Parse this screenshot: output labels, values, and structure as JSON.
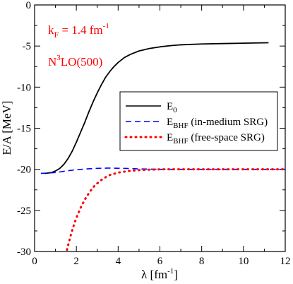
{
  "chart_data": {
    "type": "line",
    "xlabel": {
      "main": "λ [fm",
      "sup": "-1",
      "tail": "]"
    },
    "ylabel": "E/A [MeV]",
    "xlim": [
      0,
      12
    ],
    "ylim": [
      -30,
      0
    ],
    "x_ticks": [
      0,
      2,
      4,
      6,
      8,
      10,
      12
    ],
    "y_ticks": [
      0,
      -5,
      -10,
      -15,
      -20,
      -25,
      -30
    ],
    "grid": false,
    "legend_position": "middle-right",
    "annotations": {
      "kf": {
        "k": "k",
        "sub": "F",
        "rest": " = 1.4 fm",
        "sup": "-1"
      },
      "potential": {
        "pre": "N",
        "sup": "3",
        "post": "LO(500)"
      }
    },
    "series": [
      {
        "name": {
          "main": "E",
          "sub": "0",
          "suffix": ""
        },
        "color": "#000000",
        "style": "solid",
        "x": [
          0.5,
          0.8,
          1.0,
          1.2,
          1.4,
          1.6,
          1.8,
          2.0,
          2.2,
          2.4,
          2.6,
          2.8,
          3.0,
          3.2,
          3.4,
          3.6,
          3.8,
          4.0,
          4.3,
          4.6,
          5.0,
          5.5,
          6.0,
          6.5,
          7.0,
          8.0,
          9.0,
          10.0,
          11.2
        ],
        "y": [
          -20.5,
          -20.4,
          -20.2,
          -19.9,
          -19.4,
          -18.7,
          -17.8,
          -16.7,
          -15.5,
          -14.3,
          -13.0,
          -11.8,
          -10.7,
          -9.7,
          -8.8,
          -8.1,
          -7.5,
          -7.0,
          -6.4,
          -6.0,
          -5.6,
          -5.3,
          -5.1,
          -4.95,
          -4.85,
          -4.75,
          -4.7,
          -4.65,
          -4.6
        ]
      },
      {
        "name": {
          "main": "E",
          "sub": "BHF",
          "suffix": " (in-medium SRG)"
        },
        "color": "#0000ff",
        "style": "dashed",
        "x": [
          0.3,
          1.0,
          1.5,
          2.0,
          2.5,
          3.0,
          3.5,
          4.0,
          4.5,
          5.0,
          6.0,
          7.0,
          8.0,
          9.0,
          10.0,
          11.0,
          12.0
        ],
        "y": [
          -20.5,
          -20.4,
          -20.2,
          -20.05,
          -19.95,
          -19.88,
          -19.85,
          -19.87,
          -19.9,
          -19.95,
          -20.0,
          -20.0,
          -20.0,
          -20.0,
          -20.0,
          -20.0,
          -20.0
        ]
      },
      {
        "name": {
          "main": "E",
          "sub": "BHF",
          "suffix": " (free-space SRG)"
        },
        "color": "#ff0000",
        "style": "dotted",
        "x": [
          1.55,
          1.7,
          1.85,
          2.0,
          2.2,
          2.4,
          2.6,
          2.8,
          3.0,
          3.3,
          3.6,
          4.0,
          4.5,
          5.0,
          5.5,
          6.0,
          7.0,
          8.0,
          9.0,
          10.0,
          11.0,
          12.0
        ],
        "y": [
          -29.8,
          -28.3,
          -27.0,
          -25.9,
          -24.7,
          -23.7,
          -22.9,
          -22.2,
          -21.7,
          -21.1,
          -20.7,
          -20.4,
          -20.2,
          -20.1,
          -20.05,
          -20.0,
          -20.0,
          -20.0,
          -20.0,
          -20.0,
          -20.0,
          -20.0
        ]
      }
    ]
  }
}
